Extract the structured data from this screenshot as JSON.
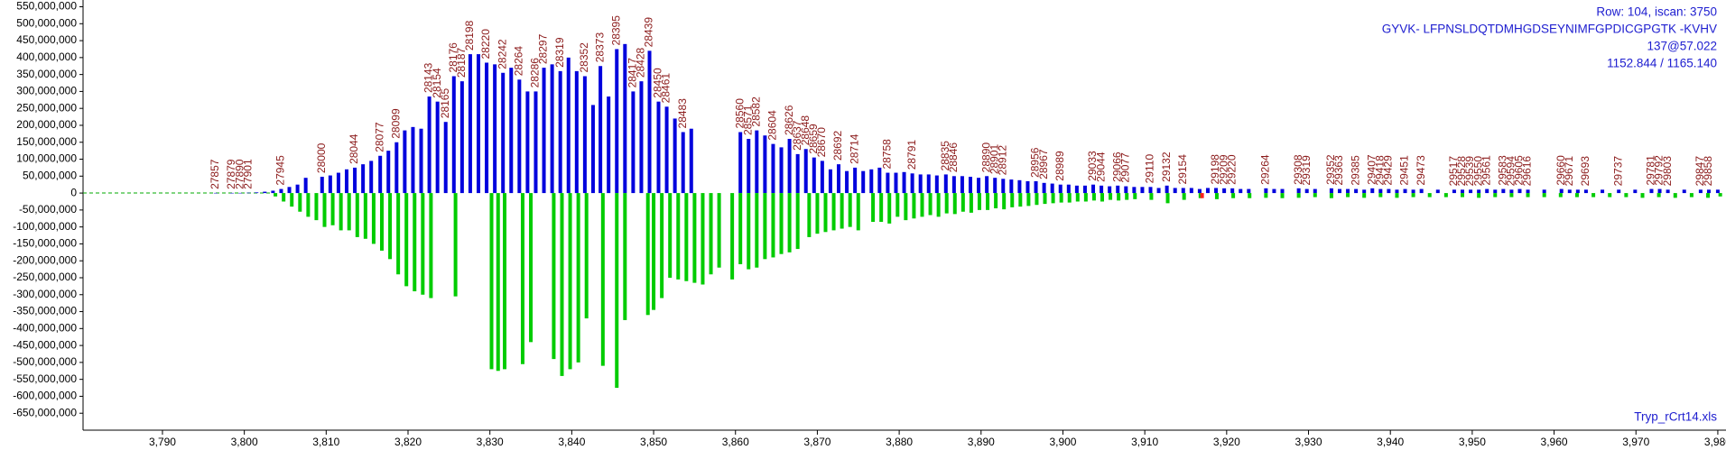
{
  "chart_data": {
    "type": "bar",
    "info_lines": [
      "Row: 104, iscan: 3750",
      "GYVK- LFPNSLDQTDMHGDSEYNIMFGPDICGPGTK -KVHV",
      "137@57.022",
      "1152.844 / 1165.140"
    ],
    "file_name": "Tryp_rCrt14.xls",
    "xlim": [
      3780.3,
      3981
    ],
    "ylim": [
      -700000000.0,
      570000000.0
    ],
    "xticks": [
      {
        "value": 3790,
        "label": "3,790"
      },
      {
        "value": 3800,
        "label": "3,800"
      },
      {
        "value": 3810,
        "label": "3,810"
      },
      {
        "value": 3820,
        "label": "3,820"
      },
      {
        "value": 3830,
        "label": "3,830"
      },
      {
        "value": 3840,
        "label": "3,840"
      },
      {
        "value": 3850,
        "label": "3,850"
      },
      {
        "value": 3860,
        "label": "3,860"
      },
      {
        "value": 3870,
        "label": "3,870"
      },
      {
        "value": 3880,
        "label": "3,880"
      },
      {
        "value": 3890,
        "label": "3,890"
      },
      {
        "value": 3900,
        "label": "3,900"
      },
      {
        "value": 3910,
        "label": "3,910"
      },
      {
        "value": 3920,
        "label": "3,920"
      },
      {
        "value": 3930,
        "label": "3,930"
      },
      {
        "value": 3940,
        "label": "3,940"
      },
      {
        "value": 3950,
        "label": "3,950"
      },
      {
        "value": 3960,
        "label": "3,960"
      },
      {
        "value": 3970,
        "label": "3,970"
      },
      {
        "value": 3980,
        "label": "3,980"
      }
    ],
    "yticks": [
      {
        "value": 550000000.0,
        "label": "550,000,000"
      },
      {
        "value": 500000000.0,
        "label": "500,000,000"
      },
      {
        "value": 450000000.0,
        "label": "450,000,000"
      },
      {
        "value": 400000000.0,
        "label": "400,000,000"
      },
      {
        "value": 350000000.0,
        "label": "350,000,000"
      },
      {
        "value": 300000000.0,
        "label": "300,000,000"
      },
      {
        "value": 250000000.0,
        "label": "250,000,000"
      },
      {
        "value": 200000000.0,
        "label": "200,000,000"
      },
      {
        "value": 150000000.0,
        "label": "150,000,000"
      },
      {
        "value": 100000000.0,
        "label": "100,000,000"
      },
      {
        "value": 50000000.0,
        "label": "50,000,000"
      },
      0,
      {
        "value": -50000000.0,
        "label": "-50,000,000"
      },
      {
        "value": -100000000.0,
        "label": "-100,000,000"
      },
      {
        "value": -150000000.0,
        "label": "-150,000,000"
      },
      {
        "value": -200000000.0,
        "label": "-200,000,000"
      },
      {
        "value": -250000000.0,
        "label": "-250,000,000"
      },
      {
        "value": -300000000.0,
        "label": "-300,000,000"
      },
      {
        "value": -350000000.0,
        "label": "-350,000,000"
      },
      {
        "value": -400000000.0,
        "label": "-400,000,000"
      },
      {
        "value": -450000000.0,
        "label": "-450,000,000"
      },
      {
        "value": -500000000.0,
        "label": "-500,000,000"
      },
      {
        "value": -550000000.0,
        "label": "-550,000,000"
      },
      {
        "value": -600000000.0,
        "label": "-600,000,000"
      },
      {
        "value": -650000000.0,
        "label": "-650,000,000"
      }
    ],
    "series": [
      {
        "color": "#0000dd",
        "x": [
          3796.5,
          3798.5,
          3799.5,
          3800.5,
          3801.5,
          3802.5,
          3803.5,
          3804.5,
          3805.5,
          3806.5,
          3807.5,
          3809.5,
          3810.5,
          3811.5,
          3812.5,
          3813.5,
          3814.5,
          3815.5,
          3816.6,
          3817.6,
          3818.6,
          3819.6,
          3820.6,
          3821.6,
          3822.6,
          3823.6,
          3824.6,
          3825.6,
          3826.6,
          3827.6,
          3828.6,
          3829.6,
          3830.6,
          3831.6,
          3832.6,
          3833.6,
          3834.6,
          3835.6,
          3836.6,
          3837.6,
          3838.6,
          3839.6,
          3840.6,
          3841.6,
          3842.6,
          3843.5,
          3844.5,
          3845.5,
          3846.5,
          3847.5,
          3848.5,
          3849.5,
          3850.6,
          3851.6,
          3852.6,
          3853.6,
          3854.6,
          3860.6,
          3861.6,
          3862.6,
          3863.6,
          3864.6,
          3865.6,
          3866.6,
          3867.6,
          3868.6,
          3869.6,
          3870.6,
          3871.6,
          3872.6,
          3873.6,
          3874.6,
          3875.6,
          3876.6,
          3877.6,
          3878.6,
          3879.6,
          3880.6,
          3881.6,
          3882.6,
          3883.6,
          3884.6,
          3885.7,
          3886.7,
          3887.7,
          3888.7,
          3889.7,
          3890.7,
          3891.7,
          3892.7,
          3893.7,
          3894.7,
          3895.7,
          3896.7,
          3897.7,
          3898.7,
          3899.7,
          3900.7,
          3901.7,
          3902.7,
          3903.7,
          3904.7,
          3905.7,
          3906.7,
          3907.7,
          3908.7,
          3909.7,
          3910.7,
          3911.7,
          3912.7,
          3913.7,
          3914.7,
          3915.7,
          3916.7,
          3917.7,
          3918.7,
          3919.7,
          3920.7,
          3921.7,
          3922.7,
          3924.8,
          3925.8,
          3926.8,
          3928.8,
          3929.8,
          3930.8,
          3932.8,
          3933.8,
          3934.8,
          3935.8,
          3936.8,
          3937.8,
          3938.8,
          3939.8,
          3940.8,
          3941.8,
          3942.8,
          3943.8,
          3945.8,
          3947.8,
          3948.8,
          3949.8,
          3950.8,
          3951.8,
          3952.8,
          3953.8,
          3954.8,
          3955.8,
          3956.8,
          3958.8,
          3960.9,
          3961.9,
          3962.9,
          3963.9,
          3965.9,
          3967.9,
          3969.9,
          3971.9,
          3972.9,
          3973.9,
          3975.9,
          3977.9,
          3978.9,
          3980
        ],
        "values": [
          500000.0,
          500000.0,
          500000.0,
          1000000.0,
          2000000.0,
          4000000.0,
          7000000.0,
          12000000.0,
          18000000.0,
          25000000.0,
          45000000.0,
          48000000.0,
          52000000.0,
          60000000.0,
          70000000.0,
          75000000.0,
          85000000.0,
          95000000.0,
          110000000.0,
          125000000.0,
          150000000.0,
          185000000.0,
          195000000.0,
          190000000.0,
          285000000.0,
          270000000.0,
          210000000.0,
          345000000.0,
          330000000.0,
          410000000.0,
          410000000.0,
          385000000.0,
          380000000.0,
          355000000.0,
          370000000.0,
          335000000.0,
          300000000.0,
          300000000.0,
          370000000.0,
          380000000.0,
          360000000.0,
          400000000.0,
          360000000.0,
          345000000.0,
          260000000.0,
          375000000.0,
          285000000.0,
          425000000.0,
          440000000.0,
          300000000.0,
          330000000.0,
          420000000.0,
          270000000.0,
          255000000.0,
          220000000.0,
          180000000.0,
          190000000.0,
          180000000.0,
          160000000.0,
          185000000.0,
          170000000.0,
          145000000.0,
          135000000.0,
          160000000.0,
          115000000.0,
          130000000.0,
          105000000.0,
          95000000.0,
          70000000.0,
          85000000.0,
          65000000.0,
          75000000.0,
          65000000.0,
          70000000.0,
          75000000.0,
          60000000.0,
          60000000.0,
          62000000.0,
          58000000.0,
          55000000.0,
          55000000.0,
          52000000.0,
          55000000.0,
          50000000.0,
          50000000.0,
          48000000.0,
          45000000.0,
          50000000.0,
          45000000.0,
          42000000.0,
          40000000.0,
          38000000.0,
          35000000.0,
          35000000.0,
          30000000.0,
          28000000.0,
          25000000.0,
          25000000.0,
          22000000.0,
          22000000.0,
          25000000.0,
          22000000.0,
          20000000.0,
          22000000.0,
          20000000.0,
          18000000.0,
          18000000.0,
          18000000.0,
          15000000.0,
          22000000.0,
          15000000.0,
          15000000.0,
          15000000.0,
          12000000.0,
          15000000.0,
          15000000.0,
          14000000.0,
          14000000.0,
          12000000.0,
          12000000.0,
          14000000.0,
          12000000.0,
          12000000.0,
          14000000.0,
          12000000.0,
          12000000.0,
          14000000.0,
          12000000.0,
          12000000.0,
          12000000.0,
          10000000.0,
          14000000.0,
          12000000.0,
          12000000.0,
          10000000.0,
          12000000.0,
          10000000.0,
          12000000.0,
          10000000.0,
          10000000.0,
          10000000.0,
          10000000.0,
          10000000.0,
          12000000.0,
          10000000.0,
          12000000.0,
          10000000.0,
          12000000.0,
          10000000.0,
          10000000.0,
          12000000.0,
          10000000.0,
          10000000.0,
          10000000.0,
          10000000.0,
          10000000.0,
          10000000.0,
          12000000.0,
          12000000.0,
          10000000.0,
          10000000.0,
          10000000.0,
          10000000.0,
          10000000.0
        ],
        "point_labels": [
          "27857",
          "27879",
          "27890",
          "27901",
          null,
          null,
          null,
          "27945",
          null,
          null,
          null,
          "28000",
          null,
          null,
          null,
          "28044",
          null,
          null,
          "28077",
          null,
          "28099",
          null,
          null,
          null,
          "28143",
          "28154",
          "28165",
          "28176",
          "28187",
          "28198",
          null,
          "28220",
          null,
          "28242",
          null,
          "28264",
          null,
          "28286",
          "28297",
          null,
          "28319",
          null,
          null,
          "28352",
          null,
          "28373",
          null,
          "28395",
          null,
          "28417",
          "28428",
          "28439",
          "28450",
          "28461",
          null,
          "28483",
          null,
          "28560",
          "28571",
          "28582",
          null,
          "28604",
          null,
          "28626",
          "28637",
          "28648",
          "28659",
          "28670",
          null,
          "28692",
          null,
          "28714",
          null,
          null,
          null,
          "28758",
          null,
          null,
          "28791",
          null,
          null,
          null,
          "28835",
          "28846",
          null,
          null,
          null,
          "28890",
          "28901",
          "28912",
          null,
          null,
          null,
          "28956",
          "28967",
          null,
          "28989",
          null,
          null,
          null,
          "29033",
          "29044",
          null,
          "29066",
          "29077",
          null,
          null,
          "29110",
          null,
          "29132",
          null,
          "29154",
          null,
          null,
          null,
          "29198",
          "29209",
          "29220",
          null,
          null,
          "29264",
          null,
          null,
          "29308",
          "29319",
          null,
          "29352",
          "29363",
          null,
          "29385",
          null,
          "29407",
          "29418",
          "29429",
          null,
          "29451",
          null,
          "29473",
          null,
          "29517",
          "29528",
          "29539",
          "29550",
          "29561",
          null,
          "29583",
          "29594",
          "29605",
          "29616",
          null,
          "29660",
          "29671",
          null,
          "29693",
          null,
          "29737",
          null,
          "29781",
          "29792",
          "29803",
          null,
          "29847",
          "29858",
          null
        ]
      },
      {
        "color": "#00cc00",
        "x": [
          3803.8,
          3804.8,
          3805.8,
          3806.8,
          3807.8,
          3808.8,
          3809.8,
          3810.8,
          3811.8,
          3812.8,
          3813.8,
          3814.8,
          3815.8,
          3816.8,
          3817.8,
          3818.8,
          3819.8,
          3820.8,
          3821.8,
          3822.8,
          3825.8,
          3830.2,
          3831.0,
          3831.8,
          3834.0,
          3835.0,
          3837.8,
          3838.8,
          3839.8,
          3840.8,
          3841.8,
          3843.8,
          3845.5,
          3846.5,
          3849.3,
          3850.0,
          3851.0,
          3852.0,
          3853.0,
          3854.0,
          3855.0,
          3856.0,
          3857.0,
          3858.0,
          3859.6,
          3860.6,
          3861.6,
          3862.6,
          3863.6,
          3864.6,
          3865.6,
          3866.6,
          3867.6,
          3869.0,
          3870.0,
          3871.0,
          3872.0,
          3873.0,
          3874.0,
          3875.0,
          3876.8,
          3877.8,
          3878.8,
          3879.8,
          3880.8,
          3881.8,
          3882.8,
          3883.8,
          3884.8,
          3885.8,
          3886.8,
          3887.8,
          3888.8,
          3889.8,
          3890.8,
          3891.8,
          3892.8,
          3893.8,
          3894.8,
          3895.8,
          3896.8,
          3897.8,
          3898.8,
          3899.8,
          3900.8,
          3901.8,
          3902.8,
          3903.8,
          3904.8,
          3905.8,
          3906.8,
          3907.8,
          3908.8,
          3910.8,
          3912.8,
          3914.8,
          3916.8,
          3918.8,
          3920.8,
          3922.8,
          3924.8,
          3926.8,
          3928.8,
          3930.8,
          3932.8,
          3934.8,
          3936.8,
          3938.8,
          3940.8,
          3942.8,
          3944.8,
          3946.8,
          3948.8,
          3950.8,
          3952.8,
          3954.8,
          3956.8,
          3958.8,
          3960.8,
          3962.8,
          3964.8,
          3966.8,
          3968.8,
          3970.8,
          3972.8,
          3974.8,
          3976.8,
          3978.8,
          3980.3
        ],
        "values": [
          -10000000.0,
          -25000000.0,
          -40000000.0,
          -55000000.0,
          -70000000.0,
          -80000000.0,
          -100000000.0,
          -95000000.0,
          -110000000.0,
          -110000000.0,
          -130000000.0,
          -135000000.0,
          -150000000.0,
          -170000000.0,
          -195000000.0,
          -240000000.0,
          -275000000.0,
          -290000000.0,
          -300000000.0,
          -310000000.0,
          -305000000.0,
          -520000000.0,
          -525000000.0,
          -520000000.0,
          -505000000.0,
          -440000000.0,
          -490000000.0,
          -540000000.0,
          -520000000.0,
          -500000000.0,
          -370000000.0,
          -510000000.0,
          -575000000.0,
          -375000000.0,
          -360000000.0,
          -345000000.0,
          -310000000.0,
          -250000000.0,
          -255000000.0,
          -260000000.0,
          -265000000.0,
          -270000000.0,
          -240000000.0,
          -220000000.0,
          -255000000.0,
          -210000000.0,
          -225000000.0,
          -220000000.0,
          -195000000.0,
          -190000000.0,
          -180000000.0,
          -175000000.0,
          -165000000.0,
          -130000000.0,
          -120000000.0,
          -115000000.0,
          -110000000.0,
          -105000000.0,
          -100000000.0,
          -110000000.0,
          -85000000.0,
          -85000000.0,
          -90000000.0,
          -70000000.0,
          -80000000.0,
          -75000000.0,
          -70000000.0,
          -65000000.0,
          -70000000.0,
          -60000000.0,
          -62000000.0,
          -55000000.0,
          -58000000.0,
          -50000000.0,
          -50000000.0,
          -45000000.0,
          -48000000.0,
          -42000000.0,
          -40000000.0,
          -38000000.0,
          -35000000.0,
          -32000000.0,
          -30000000.0,
          -28000000.0,
          -28000000.0,
          -25000000.0,
          -25000000.0,
          -22000000.0,
          -25000000.0,
          -20000000.0,
          -22000000.0,
          -20000000.0,
          -18000000.0,
          -20000000.0,
          -30000000.0,
          -20000000.0,
          -15000000.0,
          -18000000.0,
          -15000000.0,
          -15000000.0,
          -14000000.0,
          -15000000.0,
          -14000000.0,
          -12000000.0,
          -15000000.0,
          -12000000.0,
          -14000000.0,
          -12000000.0,
          -14000000.0,
          -12000000.0,
          -12000000.0,
          -12000000.0,
          -12000000.0,
          -14000000.0,
          -12000000.0,
          -12000000.0,
          -12000000.0,
          -12000000.0,
          -12000000.0,
          -12000000.0,
          -12000000.0,
          -12000000.0,
          -12000000.0,
          -14000000.0,
          -12000000.0,
          -14000000.0,
          -12000000.0,
          -14000000.0,
          -10000000.0
        ]
      },
      {
        "color": "#ff2020",
        "x": [
          3917.0
        ],
        "values": [
          -15000000.0
        ]
      }
    ]
  }
}
